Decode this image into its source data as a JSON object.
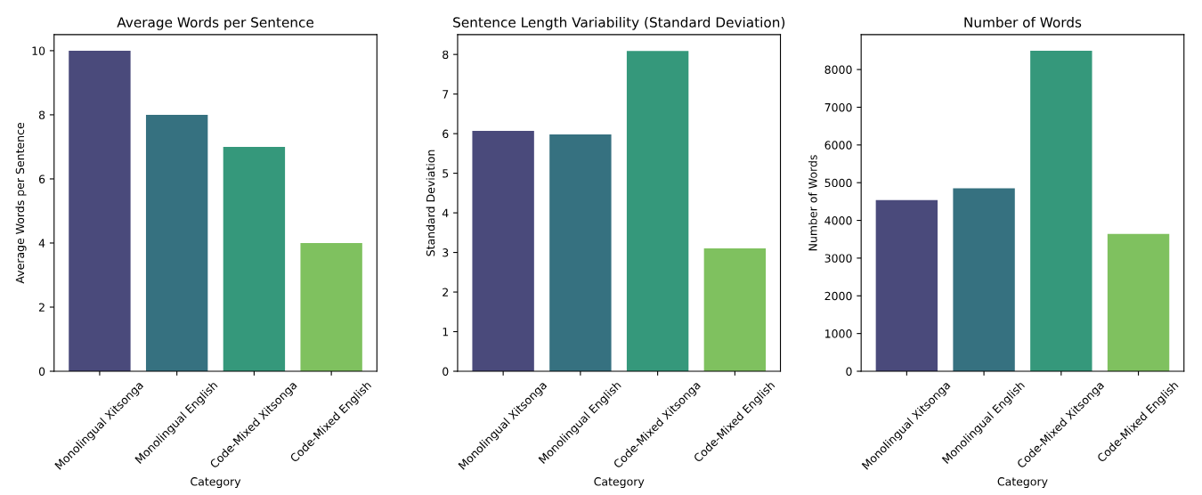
{
  "chart_data": [
    {
      "type": "bar",
      "title": "Average Words per Sentence",
      "xlabel": "Category",
      "ylabel": "Average Words per Sentence",
      "categories": [
        "Monolingual Xitsonga",
        "Monolingual English",
        "Code-Mixed Xitsonga",
        "Code-Mixed English"
      ],
      "values": [
        10,
        8,
        7,
        4
      ],
      "colors": [
        "#4a4a7b",
        "#367180",
        "#35987b",
        "#7fc15f"
      ],
      "ylim": [
        0,
        10.5
      ],
      "yticks": [
        0,
        2,
        4,
        6,
        8,
        10
      ]
    },
    {
      "type": "bar",
      "title": "Sentence Length Variability (Standard Deviation)",
      "xlabel": "Category",
      "ylabel": "Standard Deviation",
      "categories": [
        "Monolingual Xitsonga",
        "Monolingual English",
        "Code-Mixed Xitsonga",
        "Code-Mixed English"
      ],
      "values": [
        6.07,
        5.98,
        8.09,
        3.1
      ],
      "colors": [
        "#4a4a7b",
        "#367180",
        "#35987b",
        "#7fc15f"
      ],
      "ylim": [
        0,
        8.5
      ],
      "yticks": [
        0,
        1,
        2,
        3,
        4,
        5,
        6,
        7,
        8
      ]
    },
    {
      "type": "bar",
      "title": "Number of Words",
      "xlabel": "Category",
      "ylabel": "Number of Words",
      "categories": [
        "Monolingual Xitsonga",
        "Monolingual English",
        "Code-Mixed Xitsonga",
        "Code-Mixed English"
      ],
      "values": [
        4540,
        4850,
        8500,
        3640
      ],
      "colors": [
        "#4a4a7b",
        "#367180",
        "#35987b",
        "#7fc15f"
      ],
      "ylim": [
        0,
        8925
      ],
      "yticks": [
        0,
        1000,
        2000,
        3000,
        4000,
        5000,
        6000,
        7000,
        8000
      ]
    }
  ]
}
